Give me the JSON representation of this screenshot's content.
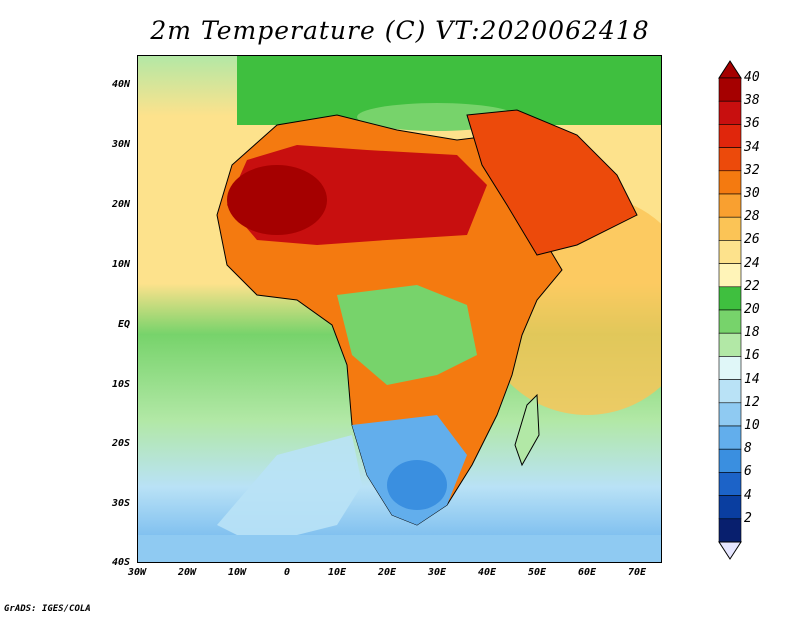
{
  "title": "2m Temperature (C) VT:2020062418",
  "footer": "GrADS: IGES/COLA",
  "lat_labels": [
    "40N",
    "30N",
    "20N",
    "10N",
    "EQ",
    "10S",
    "20S",
    "30S",
    "40S"
  ],
  "lon_labels": [
    "30W",
    "20W",
    "10W",
    "0",
    "10E",
    "20E",
    "30E",
    "40E",
    "50E",
    "60E",
    "70E"
  ],
  "colorbar": {
    "labels": [
      "40",
      "38",
      "36",
      "34",
      "32",
      "30",
      "28",
      "26",
      "24",
      "22",
      "20",
      "18",
      "16",
      "14",
      "12",
      "10",
      "8",
      "6",
      "4",
      "2"
    ],
    "colors": [
      "#a50000",
      "#c80f0f",
      "#e0260c",
      "#ec4a0b",
      "#f47a10",
      "#f9a030",
      "#fbc456",
      "#fde28c",
      "#fff4b8",
      "#3fbf3f",
      "#77d36b",
      "#b2e8a6",
      "#e0f7f8",
      "#b9e2f6",
      "#8fcaf2",
      "#62aeec",
      "#3a8fe0",
      "#1c63c8",
      "#0a3ea0",
      "#081f6e"
    ],
    "low_cap_color": "#e6e6ff",
    "high_cap_color": "#a50000"
  }
}
